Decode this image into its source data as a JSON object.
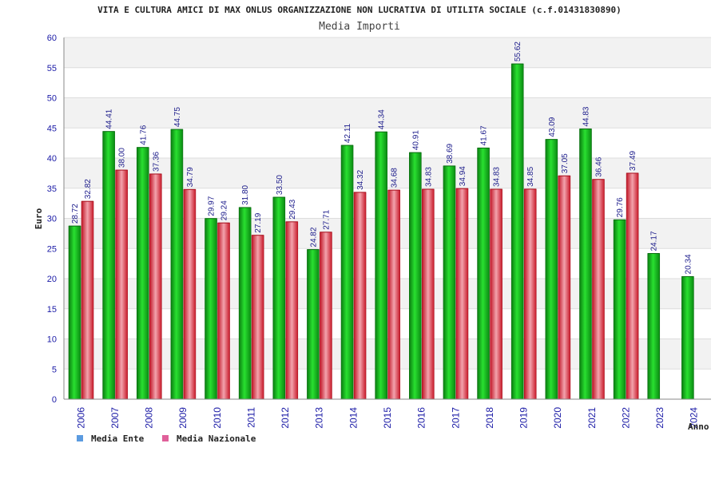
{
  "chart_data": {
    "type": "bar",
    "title": "VITA E CULTURA AMICI DI MAX ONLUS ORGANIZZAZIONE NON LUCRATIVA DI UTILITA SOCIALE (c.f.01431830890)",
    "subtitle": "Media Importi",
    "xlabel": "Anno",
    "ylabel": "Euro",
    "ylim": [
      0,
      60
    ],
    "yticks": [
      "0",
      "5",
      "10",
      "15",
      "20",
      "25",
      "30",
      "35",
      "40",
      "45",
      "50",
      "55",
      "60"
    ],
    "grid": true,
    "legend_position": "bottom-left",
    "categories": [
      "2006",
      "2007",
      "2008",
      "2009",
      "2010",
      "2011",
      "2012",
      "2013",
      "2014",
      "2015",
      "2016",
      "2017",
      "2018",
      "2019",
      "2020",
      "2021",
      "2022",
      "2023",
      "2024"
    ],
    "series": [
      {
        "name": "Media Ente",
        "legend_color": "#5b9be0",
        "bar_color": "#11b51a",
        "values": [
          28.72,
          44.41,
          41.76,
          44.75,
          29.97,
          31.8,
          33.5,
          24.82,
          42.11,
          44.34,
          40.91,
          38.69,
          41.67,
          55.62,
          43.09,
          44.83,
          29.76,
          24.17,
          20.34
        ],
        "labels": [
          "28.72",
          "44.41",
          "41.76",
          "44.75",
          "29.97",
          "31.80",
          "33.50",
          "24.82",
          "42.11",
          "44.34",
          "40.91",
          "38.69",
          "41.67",
          "55.62",
          "43.09",
          "44.83",
          "29.76",
          "24.17",
          "20.34"
        ]
      },
      {
        "name": "Media Nazionale",
        "legend_color": "#e0609a",
        "bar_color": "#e8283a",
        "values": [
          32.82,
          38.0,
          37.36,
          34.79,
          29.24,
          27.19,
          29.43,
          27.71,
          34.32,
          34.68,
          34.83,
          34.94,
          34.83,
          34.85,
          37.05,
          36.46,
          37.49,
          null,
          null
        ],
        "labels": [
          "32.82",
          "38.00",
          "37.36",
          "34.79",
          "29.24",
          "27.19",
          "29.43",
          "27.71",
          "34.32",
          "34.68",
          "34.83",
          "34.94",
          "34.83",
          "34.85",
          "37.05",
          "36.46",
          "37.49",
          null,
          null
        ]
      }
    ]
  }
}
